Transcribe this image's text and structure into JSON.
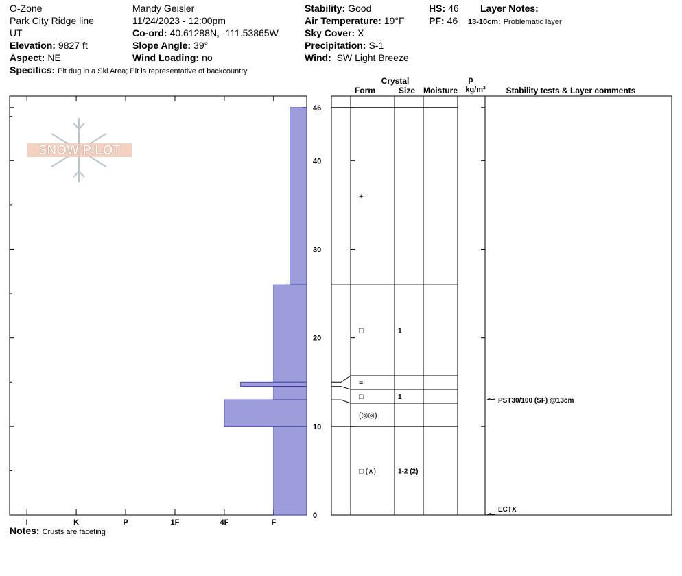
{
  "header": {
    "columns": [
      [
        {
          "value": "O-Zone"
        },
        {
          "value": "Park City Ridge line"
        },
        {
          "value": "UT"
        },
        {
          "label": "Elevation:",
          "value": "9827 ft"
        },
        {
          "label": "Aspect:",
          "value": "NE"
        }
      ],
      [
        {
          "value": "Mandy Geisler"
        },
        {
          "value": "11/24/2023 - 12:00pm"
        },
        {
          "label": "Co-ord:",
          "value": "40.61288N, -111.53865W"
        },
        {
          "label": "Slope Angle:",
          "value": "39°"
        },
        {
          "label": "Wind Loading:",
          "value": "no"
        }
      ],
      [
        {
          "label": "Stability:",
          "value": "Good"
        },
        {
          "label": "Air Temperature:",
          "value": "19°F"
        },
        {
          "label": "Sky Cover:",
          "value": "X"
        },
        {
          "label": "Precipitation:",
          "value": "S-1"
        },
        {
          "label": "Wind:",
          "value": " SW Light Breeze"
        }
      ]
    ],
    "hs": {
      "label": "HS:",
      "value": 46
    },
    "pf": {
      "label": "PF:",
      "value": 46
    },
    "layer_notes": {
      "label": "Layer Notes:",
      "depth": "13-10cm:",
      "text": "Problematic layer"
    },
    "specifics": {
      "label": "Specifics:",
      "value": "Pit dug in a Ski Area; Pit is representative of backcountry"
    }
  },
  "logo": "SNOW PILOT",
  "profile": {
    "ylim": [
      0,
      47.3
    ],
    "yticks": [
      0,
      10,
      20,
      30,
      40,
      46
    ],
    "minor_yticks": [
      5,
      15,
      25,
      35,
      45
    ],
    "xlim": [
      -0.35,
      5.67
    ],
    "xticks": [
      {
        "value": 0,
        "label": "I"
      },
      {
        "value": 1,
        "label": "K"
      },
      {
        "value": 2,
        "label": "P"
      },
      {
        "value": 3,
        "label": "1F"
      },
      {
        "value": 4,
        "label": "4F"
      },
      {
        "value": 5,
        "label": "F"
      }
    ],
    "bar_color": "#9d9ddb",
    "layers": [
      {
        "top": 46,
        "bottom": 26,
        "hardness": 5.33,
        "form": "+"
      },
      {
        "top": 26,
        "bottom": 15,
        "hardness": 5,
        "form": "□",
        "size": "1"
      },
      {
        "top": 15,
        "bottom": 14.5,
        "hardness": 4.33,
        "form": "="
      },
      {
        "top": 14.5,
        "bottom": 13,
        "hardness": 5,
        "form": "□",
        "size": "1"
      },
      {
        "top": 13,
        "bottom": 10,
        "hardness": 4,
        "form": "(◎◎)"
      },
      {
        "top": 10,
        "bottom": 0,
        "hardness": 5,
        "form": "□ (∧)",
        "size": "1-2 (2)"
      }
    ]
  },
  "table_headers": {
    "crystal": "Crystal",
    "form": "Form",
    "size": "Size",
    "moisture": "Moisture",
    "rho": "ρ",
    "density_unit": "kg/m³",
    "comments": "Stability tests & Layer comments"
  },
  "stability_tests": [
    {
      "depth": 13,
      "text": "PST30/100 (SF) @13cm"
    },
    {
      "depth": 0,
      "text": "ECTX"
    }
  ],
  "notes": {
    "label": "Notes:",
    "value": "Crusts are faceting"
  }
}
